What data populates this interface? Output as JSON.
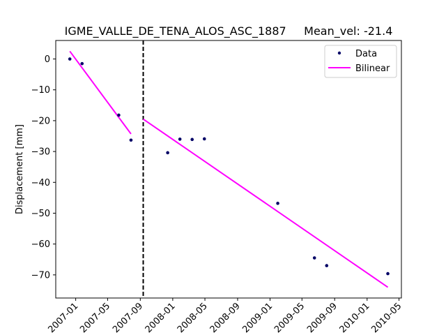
{
  "chart_data": {
    "type": "scatter",
    "title": "IGME_VALLE_DE_TENA_ALOS_ASC_1887     Mean_vel: -21.4",
    "xlabel": "",
    "ylabel": "Displacement [mm]",
    "x_ticks": [
      "2007-01",
      "2007-05",
      "2007-09",
      "2008-01",
      "2008-05",
      "2008-09",
      "2009-01",
      "2009-05",
      "2009-09",
      "2010-01",
      "2010-05"
    ],
    "y_ticks": [
      0,
      -10,
      -20,
      -30,
      -40,
      -50,
      -60,
      -70
    ],
    "xlim": [
      "2006-10-18",
      "2010-05-10"
    ],
    "ylim": [
      -77.5,
      6.0
    ],
    "grid": false,
    "legend_position": "top-right",
    "breakpoint_date": "2007-09-12",
    "series": [
      {
        "name": "Data",
        "kind": "points",
        "color": "#000066",
        "points": [
          {
            "x": "2006-12-10",
            "y": 0.0
          },
          {
            "x": "2007-01-25",
            "y": -1.5
          },
          {
            "x": "2007-06-12",
            "y": -18.2
          },
          {
            "x": "2007-07-28",
            "y": -26.3
          },
          {
            "x": "2007-12-13",
            "y": -30.4
          },
          {
            "x": "2008-01-28",
            "y": -26.0
          },
          {
            "x": "2008-03-14",
            "y": -26.1
          },
          {
            "x": "2008-04-29",
            "y": -25.9
          },
          {
            "x": "2009-01-30",
            "y": -46.8
          },
          {
            "x": "2009-06-17",
            "y": -64.5
          },
          {
            "x": "2009-08-02",
            "y": -67.0
          },
          {
            "x": "2010-03-20",
            "y": -69.6
          }
        ]
      },
      {
        "name": "Bilinear",
        "kind": "line",
        "color": "#ff00ff",
        "segments": [
          [
            {
              "x": "2006-12-10",
              "y": 2.5
            },
            {
              "x": "2007-07-28",
              "y": -24.3
            }
          ],
          [
            {
              "x": "2007-09-12",
              "y": -19.5
            },
            {
              "x": "2010-03-20",
              "y": -74.0
            }
          ]
        ]
      }
    ]
  }
}
